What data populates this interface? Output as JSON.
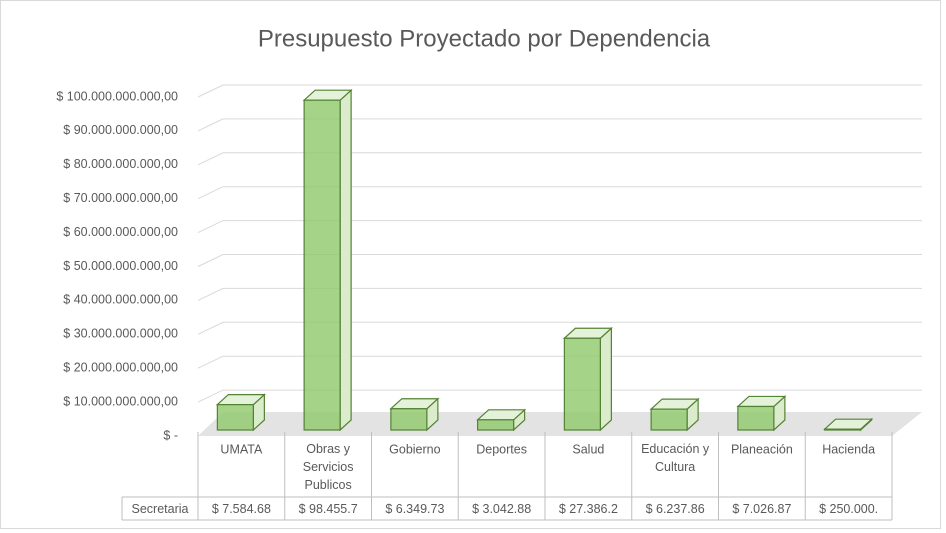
{
  "chart_data": {
    "type": "bar",
    "title": "Presupuesto Proyectado por Dependencia",
    "categories": [
      "UMATA",
      "Obras y Servicios Publicos",
      "Gobierno",
      "Deportes",
      "Salud",
      "Educación y Cultura",
      "Planeación",
      "Hacienda"
    ],
    "series": [
      {
        "name": "Secretaria",
        "color": "#8fc96b",
        "values": [
          7584680000,
          98455700000,
          6349730000,
          3042880000,
          27386200000,
          6237860000,
          7026870000,
          250000000
        ],
        "value_labels": [
          "$ 7.584.68",
          "$ 98.455.7",
          "$ 6.349.73",
          "$ 3.042.88",
          "$ 27.386.2",
          "$ 6.237.86",
          "$ 7.026.87",
          "$ 250.000."
        ]
      }
    ],
    "ylim": [
      0,
      100000000000
    ],
    "yticks": [
      {
        "value": 0,
        "label": "$ -"
      },
      {
        "value": 10000000000,
        "label": "$ 10.000.000.000,00"
      },
      {
        "value": 20000000000,
        "label": "$ 20.000.000.000,00"
      },
      {
        "value": 30000000000,
        "label": "$ 30.000.000.000,00"
      },
      {
        "value": 40000000000,
        "label": "$ 40.000.000.000,00"
      },
      {
        "value": 50000000000,
        "label": "$ 50.000.000.000,00"
      },
      {
        "value": 60000000000,
        "label": "$ 60.000.000.000,00"
      },
      {
        "value": 70000000000,
        "label": "$ 70.000.000.000,00"
      },
      {
        "value": 80000000000,
        "label": "$ 80.000.000.000,00"
      },
      {
        "value": 90000000000,
        "label": "$ 90.000.000.000,00"
      },
      {
        "value": 100000000000,
        "label": "$ 100.000.000.000,00"
      }
    ],
    "grid": true
  }
}
